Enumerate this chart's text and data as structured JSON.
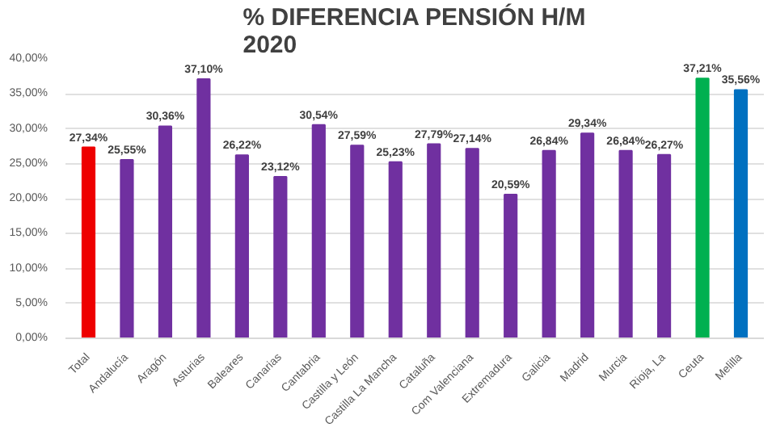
{
  "chart_data": {
    "type": "bar",
    "title": "% DIFERENCIA PENSIÓN H/M\n2020",
    "categories": [
      "Total",
      "Andalucía",
      "Aragón",
      "Asturias",
      "Baleares",
      "Canarias",
      "Cantabria",
      "Castilla y León",
      "Castilla La Mancha",
      "Cataluña",
      "Com Valenciana",
      "Extremadura",
      "Galicia",
      "Madrid",
      "Murcia",
      "Rioja, La",
      "Ceuta",
      "Melilla"
    ],
    "values": [
      27.34,
      25.55,
      30.36,
      37.1,
      26.22,
      23.12,
      30.54,
      27.59,
      25.23,
      27.79,
      27.14,
      20.59,
      26.84,
      29.34,
      26.84,
      26.27,
      37.21,
      35.56
    ],
    "value_labels": [
      "27,34%",
      "25,55%",
      "30,36%",
      "37,10%",
      "26,22%",
      "23,12%",
      "30,54%",
      "27,59%",
      "25,23%",
      "27,79%",
      "27,14%",
      "20,59%",
      "26,84%",
      "29,34%",
      "26,84%",
      "26,27%",
      "37,21%",
      "35,56%"
    ],
    "colors": [
      "#ee0000",
      "#7030a0",
      "#7030a0",
      "#7030a0",
      "#7030a0",
      "#7030a0",
      "#7030a0",
      "#7030a0",
      "#7030a0",
      "#7030a0",
      "#7030a0",
      "#7030a0",
      "#7030a0",
      "#7030a0",
      "#7030a0",
      "#7030a0",
      "#00b050",
      "#0070c0"
    ],
    "ylim": [
      0,
      40
    ],
    "yticks": [
      {
        "value": 0,
        "label": "0,00%"
      },
      {
        "value": 5,
        "label": "5,00%"
      },
      {
        "value": 10,
        "label": "10,00%"
      },
      {
        "value": 15,
        "label": "15,00%"
      },
      {
        "value": 20,
        "label": "20,00%"
      },
      {
        "value": 25,
        "label": "25,00%"
      },
      {
        "value": 30,
        "label": "30,00%"
      },
      {
        "value": 35,
        "label": "35,00%"
      },
      {
        "value": 40,
        "label": "40,00%"
      }
    ],
    "grid": "y"
  }
}
